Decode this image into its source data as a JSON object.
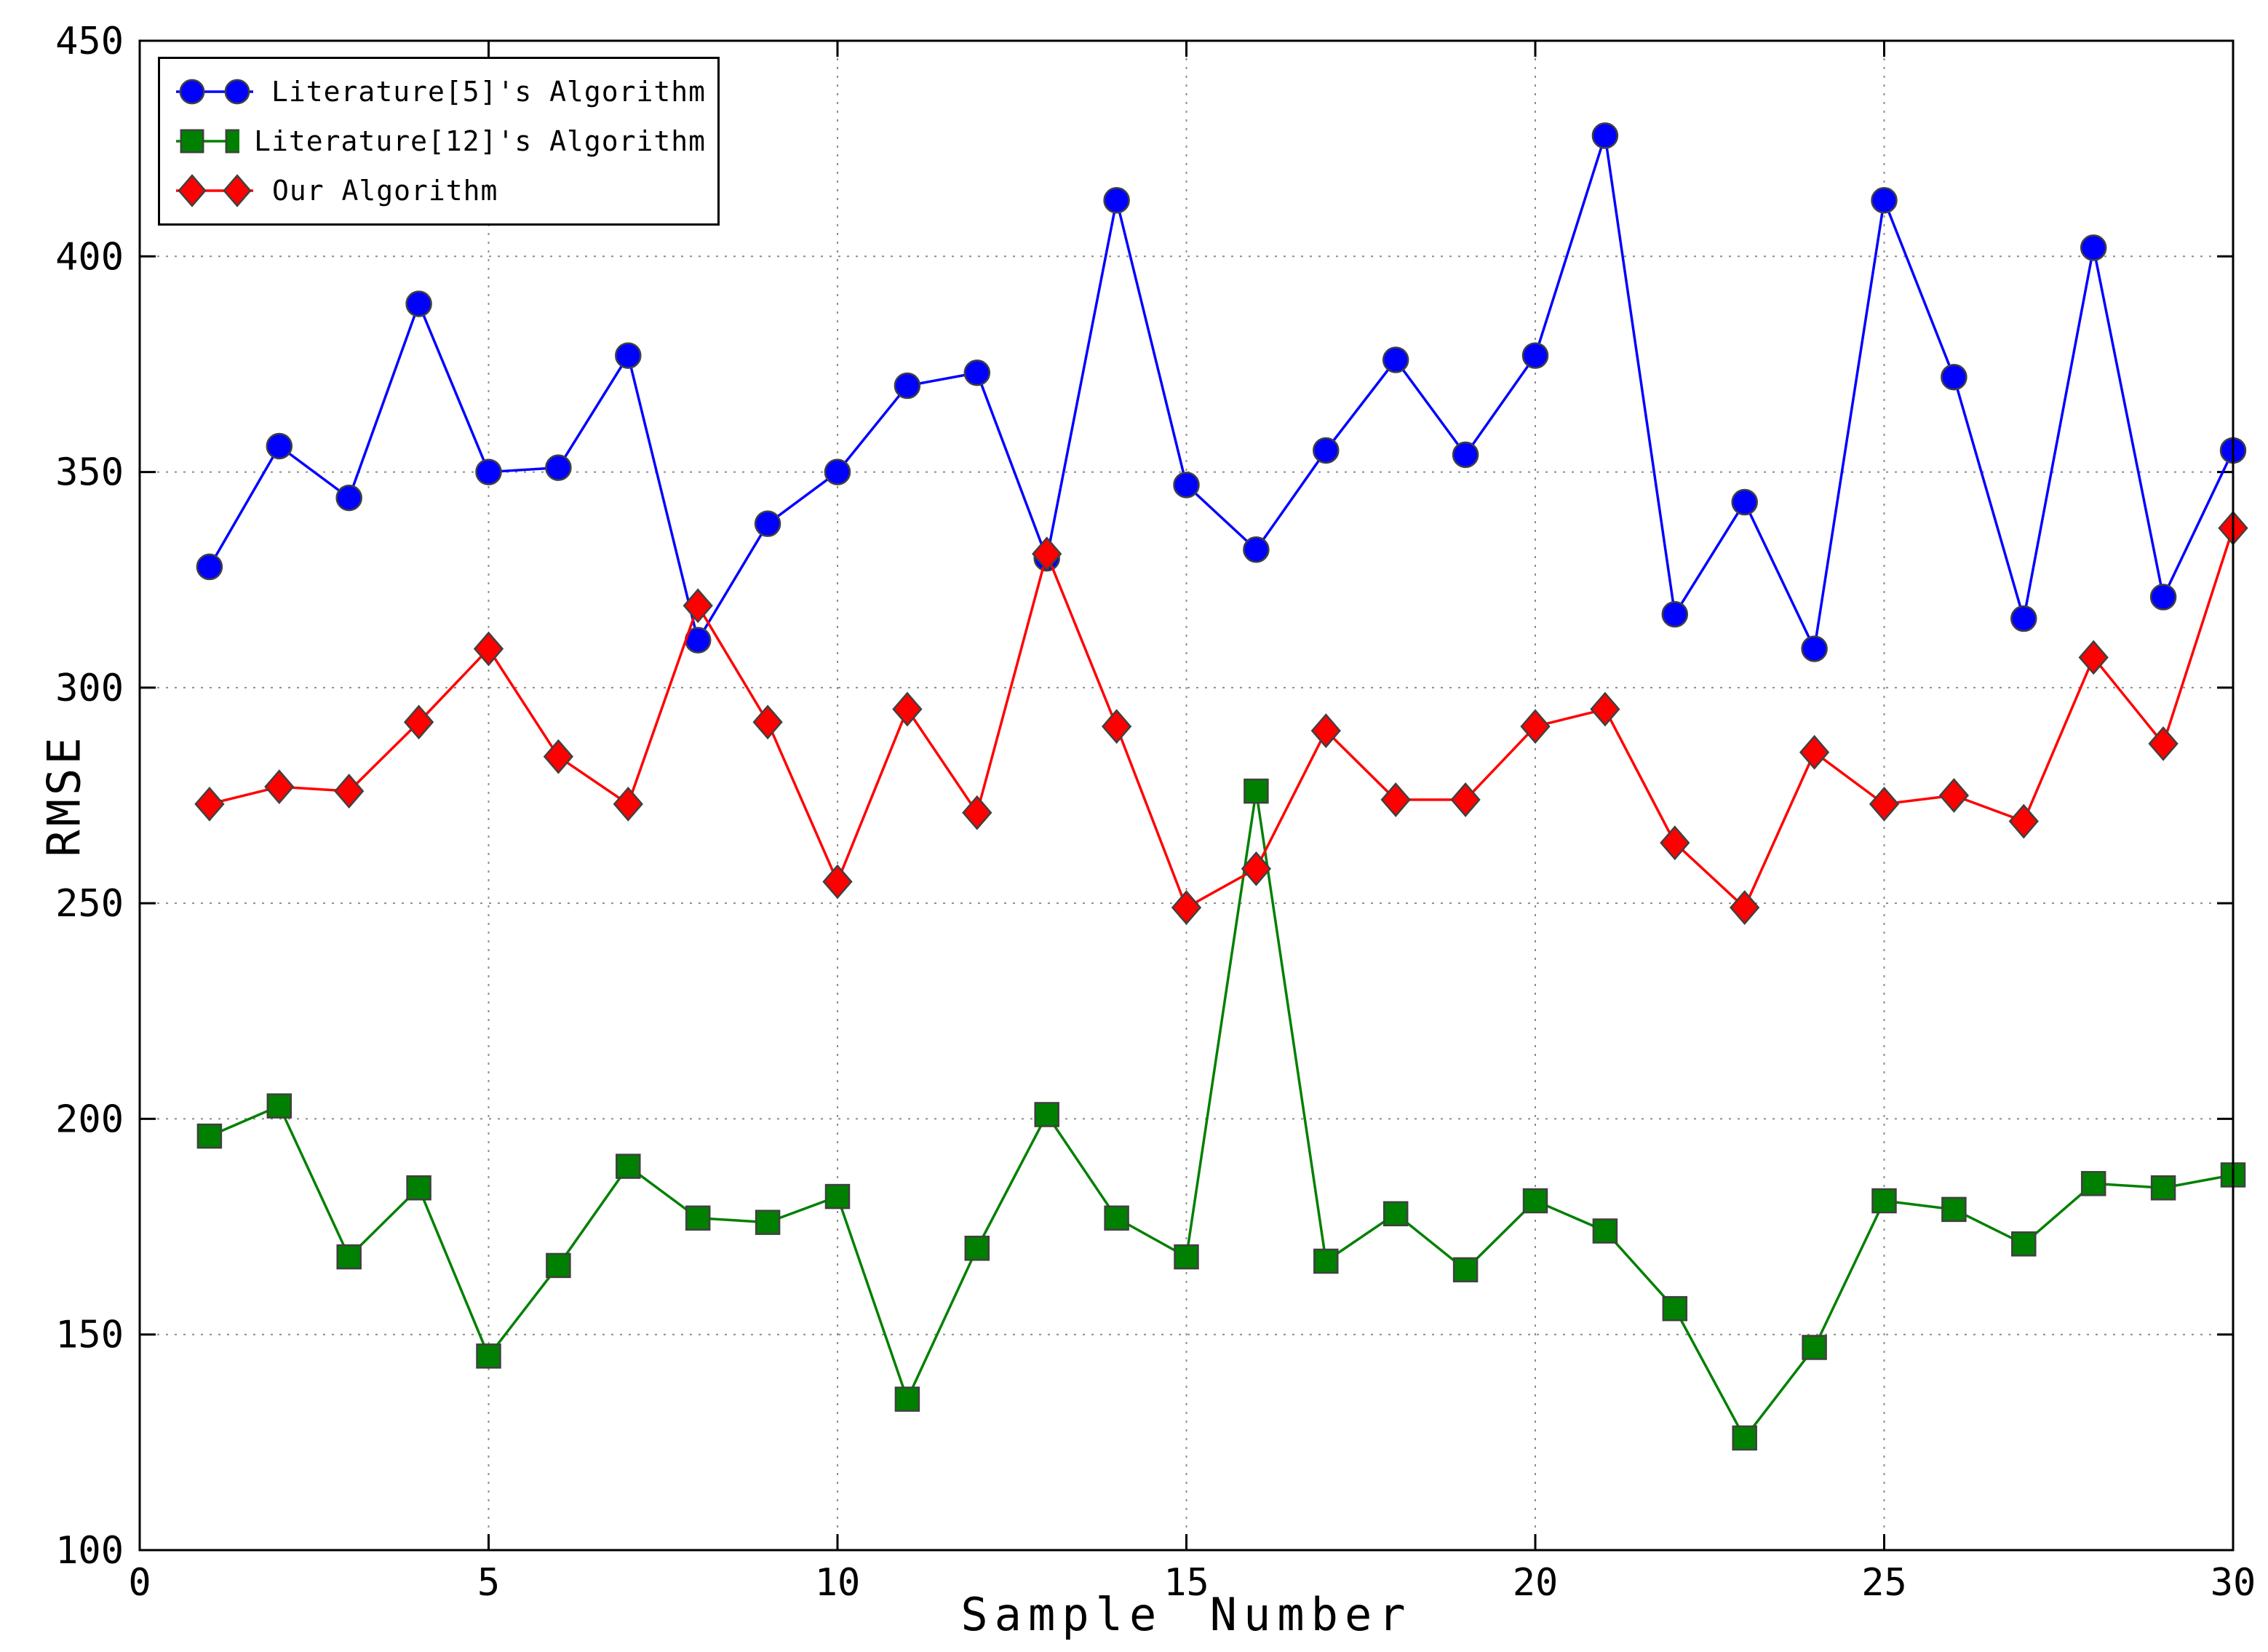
{
  "figure": {
    "background": "#ffffff",
    "frame_color": "#000000",
    "grid_color": "#8c8c8c",
    "marker_edge_color": "#404040"
  },
  "chart_data": {
    "type": "line",
    "title": "",
    "xlabel": "Sample Number",
    "ylabel": "RMSE",
    "xlim": [
      0,
      30
    ],
    "ylim": [
      100,
      450
    ],
    "x_ticks": [
      0,
      5,
      10,
      15,
      20,
      25,
      30
    ],
    "y_ticks": [
      100,
      150,
      200,
      250,
      300,
      350,
      400,
      450
    ],
    "grid": true,
    "legend_position": "top-left",
    "x": [
      1,
      2,
      3,
      4,
      5,
      6,
      7,
      8,
      9,
      10,
      11,
      12,
      13,
      14,
      15,
      16,
      17,
      18,
      19,
      20,
      21,
      22,
      23,
      24,
      25,
      26,
      27,
      28,
      29,
      30
    ],
    "series": [
      {
        "name": "Literature[5]'s Algorithm",
        "color": "#0000ff",
        "marker": "circle",
        "values": [
          328,
          356,
          344,
          389,
          350,
          351,
          377,
          311,
          338,
          350,
          370,
          373,
          330,
          413,
          347,
          332,
          355,
          376,
          354,
          377,
          428,
          317,
          343,
          309,
          413,
          372,
          316,
          402,
          321,
          355
        ]
      },
      {
        "name": "Literature[12]'s Algorithm",
        "color": "#008000",
        "marker": "square",
        "values": [
          196,
          203,
          168,
          184,
          145,
          166,
          189,
          177,
          176,
          182,
          135,
          170,
          201,
          177,
          168,
          276,
          167,
          178,
          165,
          181,
          174,
          156,
          126,
          147,
          181,
          179,
          171,
          185,
          184,
          187
        ]
      },
      {
        "name": "Our Algorithm",
        "color": "#ff0000",
        "marker": "diamond",
        "values": [
          273,
          277,
          276,
          292,
          309,
          284,
          273,
          319,
          292,
          255,
          295,
          271,
          331,
          291,
          249,
          258,
          290,
          274,
          274,
          291,
          295,
          264,
          249,
          285,
          273,
          275,
          269,
          307,
          287,
          337
        ]
      }
    ]
  }
}
